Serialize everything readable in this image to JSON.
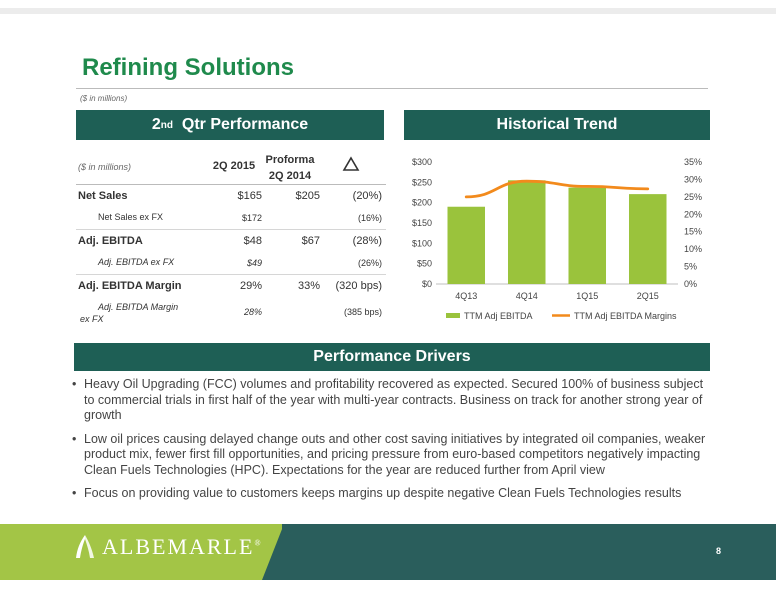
{
  "slide": {
    "title": "Refining Solutions",
    "subtitle": "($ in millions)",
    "page_number": "8"
  },
  "qtr_banner": {
    "prefix": "2",
    "sup": "nd",
    "rest": "  Qtr Performance"
  },
  "trend_banner": {
    "label": "Historical Trend"
  },
  "drivers_banner": {
    "label": "Performance Drivers"
  },
  "table": {
    "header": {
      "unit": "($ in millions)",
      "col1": "2Q 2015",
      "col2_line1": "Proforma",
      "col2_line2": "2Q 2014"
    },
    "rows": [
      {
        "label": "Net Sales",
        "v1": "$165",
        "v2": "$205",
        "v3": "(20%)"
      },
      {
        "label": "Net Sales ex FX",
        "v1": "$172",
        "v2": "",
        "v3": "(16%)"
      },
      {
        "label": "Adj. EBITDA",
        "v1": "$48",
        "v2": "$67",
        "v3": "(28%)"
      },
      {
        "label": "Adj. EBITDA ex FX",
        "v1": "$49",
        "v2": "",
        "v3": "(26%)"
      },
      {
        "label": "Adj. EBITDA Margin",
        "v1": "29%",
        "v2": "33%",
        "v3": "(320 bps)"
      },
      {
        "label_line1": "Adj. EBITDA Margin",
        "label_line2": "ex FX",
        "v1": "28%",
        "v2": "",
        "v3": "(385 bps)"
      }
    ]
  },
  "chart_data": {
    "type": "bar",
    "categories": [
      "4Q13",
      "4Q14",
      "1Q15",
      "2Q15"
    ],
    "series": [
      {
        "name": "TTM Adj EBITDA",
        "type": "bar",
        "axis": "left",
        "values": [
          190,
          255,
          237,
          221
        ],
        "color": "#9ac33c"
      },
      {
        "name": "TTM Adj EBITDA Margins",
        "type": "line",
        "axis": "right",
        "values": [
          25,
          29.5,
          28,
          27.3
        ],
        "color": "#f28a1c"
      }
    ],
    "ylim": [
      0,
      300
    ],
    "y_ticks": [
      "$0",
      "$50",
      "$100",
      "$150",
      "$200",
      "$250",
      "$300"
    ],
    "y2lim": [
      0,
      35
    ],
    "y2_ticks": [
      "0%",
      "5%",
      "10%",
      "15%",
      "20%",
      "25%",
      "30%",
      "35%"
    ],
    "legend_position": "bottom",
    "grid": false
  },
  "bullets": [
    "Heavy Oil  Upgrading  (FCC) volumes and profitability recovered as expected. Secured 100% of business subject to commercial trials in first half of the year with multi-year contracts. Business on track for another strong year of growth",
    "Low oil prices causing delayed change outs and other cost saving initiatives by integrated oil companies, weaker product mix, fewer first fill opportunities, and pricing pressure from euro-based competitors negatively impacting Clean Fuels Technologies (HPC). Expectations for the year are reduced further from April view",
    "Focus on providing value to customers keeps margins up despite negative Clean Fuels Technologies results"
  ],
  "footer": {
    "logo_text": "ALBEMARLE",
    "logo_mark": "®"
  },
  "colors": {
    "title_green": "#1f8a4c",
    "banner": "#1e5f55",
    "footer_light": "#a3c546",
    "footer_dark": "#2a5e5c"
  }
}
